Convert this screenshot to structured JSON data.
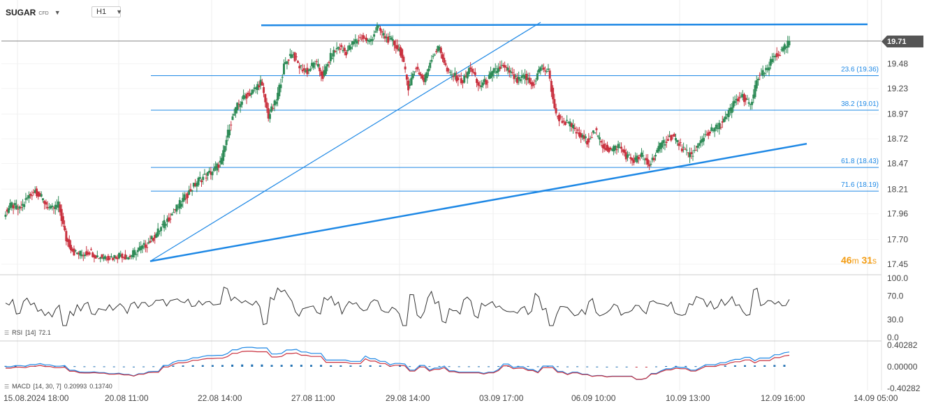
{
  "header": {
    "symbol": "SUGAR",
    "instrument_type": "CFD",
    "timeframe": "H1"
  },
  "current_price_label": "19.71",
  "countdown": {
    "minutes": "46",
    "minutes_unit": "m",
    "seconds": "31",
    "seconds_unit": "s"
  },
  "colors": {
    "up": "#2e8b57",
    "down": "#c9313f",
    "trend": "#1e88e5",
    "fib": "#1e88e5"
  },
  "chart_data": {
    "type": "candlestick",
    "price_axis": {
      "ylim": [
        17.35,
        19.9
      ],
      "ticks": [
        "19.48",
        "19.23",
        "18.97",
        "18.72",
        "18.47",
        "18.21",
        "17.96",
        "17.70",
        "17.45"
      ]
    },
    "time_axis_labels": [
      "15.08.2024 18:00",
      "20.08 11:00",
      "22.08 14:00",
      "27.08 11:00",
      "29.08 14:00",
      "03.09 17:00",
      "06.09 10:00",
      "10.09 13:00",
      "12.09 16:00",
      "14.09 05:00"
    ],
    "fibonacci_levels": [
      {
        "label": "23.6 (19.36)",
        "value": 19.36
      },
      {
        "label": "38.2 (19.01)",
        "value": 19.01
      },
      {
        "label": "61.8 (18.43)",
        "value": 18.43
      },
      {
        "label": "71.6 (18.19)",
        "value": 18.19
      }
    ],
    "current_price": 19.71,
    "close_path": [
      17.96,
      18.05,
      18.0,
      18.12,
      18.2,
      18.1,
      18.0,
      18.05,
      17.7,
      17.57,
      17.55,
      17.58,
      17.53,
      17.53,
      17.52,
      17.55,
      17.52,
      17.58,
      17.63,
      17.7,
      17.8,
      17.9,
      18.0,
      18.1,
      18.2,
      18.3,
      18.35,
      18.4,
      18.5,
      18.85,
      19.05,
      19.15,
      19.2,
      19.3,
      18.95,
      19.1,
      19.45,
      19.6,
      19.45,
      19.4,
      19.5,
      19.35,
      19.55,
      19.65,
      19.6,
      19.7,
      19.75,
      19.7,
      19.85,
      19.75,
      19.7,
      19.6,
      19.25,
      19.45,
      19.3,
      19.55,
      19.65,
      19.4,
      19.35,
      19.3,
      19.45,
      19.25,
      19.3,
      19.4,
      19.45,
      19.4,
      19.3,
      19.35,
      19.25,
      19.45,
      19.4,
      18.95,
      18.9,
      18.85,
      18.75,
      18.7,
      18.8,
      18.65,
      18.6,
      18.65,
      18.55,
      18.5,
      18.55,
      18.45,
      18.6,
      18.7,
      18.75,
      18.65,
      18.55,
      18.6,
      18.75,
      18.8,
      18.85,
      18.95,
      19.1,
      19.15,
      19.05,
      19.35,
      19.4,
      19.55,
      19.6,
      19.7
    ],
    "rsi": {
      "label": "RSI",
      "params": "[14]",
      "value": "72.1",
      "ticks": [
        "100.0",
        "70.0",
        "30.0",
        "0.0"
      ],
      "ylim": [
        0,
        100
      ]
    },
    "macd": {
      "label": "MACD",
      "params": "[14, 30, 7]",
      "value1": "0.20993",
      "value2": "0.13740",
      "ticks": [
        "0.40282",
        "0.00000",
        "-0.40282"
      ],
      "ylim": [
        -0.40282,
        0.40282
      ]
    }
  }
}
